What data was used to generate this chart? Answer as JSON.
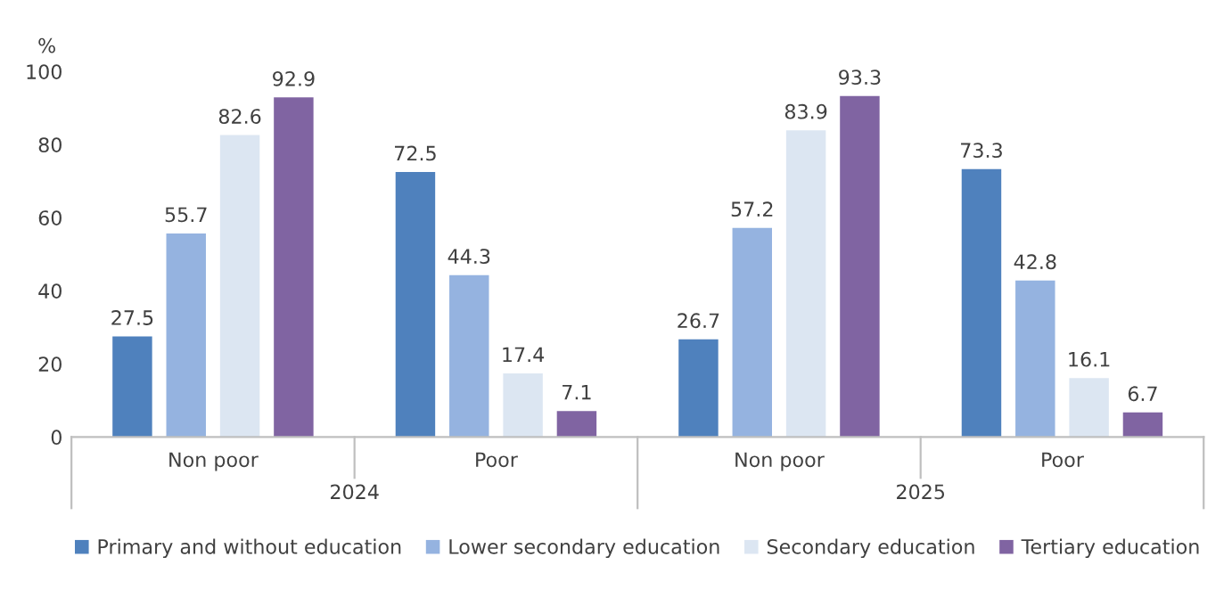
{
  "chart_data": {
    "type": "bar",
    "categories": [
      "Non poor",
      "Poor",
      "Non poor",
      "Poor"
    ],
    "ylabel": "%",
    "annotations": [
      "2024",
      "2025"
    ],
    "series": [
      {
        "name": "Primary and without education",
        "color": "#4f81bd",
        "values": [
          27.5,
          72.5,
          26.7,
          73.3
        ]
      },
      {
        "name": "Lower secondary education",
        "color": "#95b3e0",
        "values": [
          55.7,
          44.3,
          57.2,
          42.8
        ]
      },
      {
        "name": "Secondary education",
        "color": "#dce6f2",
        "values": [
          82.6,
          17.4,
          83.9,
          16.1
        ]
      },
      {
        "name": "Tertiary education",
        "color": "#8064a2",
        "values": [
          92.9,
          7.1,
          93.3,
          6.7
        ]
      }
    ],
    "ylim": [
      0,
      100
    ],
    "yticks": [
      0,
      20,
      40,
      60,
      80,
      100
    ],
    "data_labels": true,
    "grid": false,
    "legend": "bottom"
  }
}
